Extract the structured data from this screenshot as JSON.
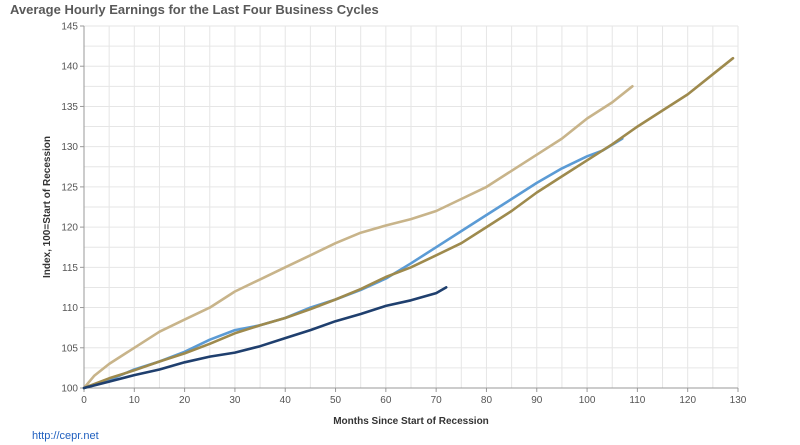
{
  "source": "http://cepr.net",
  "chart_data": {
    "type": "line",
    "title": "Average Hourly Earnings for the Last Four Business Cycles",
    "xlabel": "Months Since Start of Recession",
    "ylabel": "Index, 100=Start of Recession",
    "xlim": [
      0,
      130
    ],
    "ylim": [
      100,
      145
    ],
    "xticks": [
      0,
      10,
      20,
      30,
      40,
      50,
      60,
      70,
      80,
      90,
      100,
      110,
      120,
      130
    ],
    "yticks": [
      100,
      105,
      110,
      115,
      120,
      125,
      130,
      135,
      140,
      145
    ],
    "grid": true,
    "series": [
      {
        "color": "#c8b48a",
        "points": [
          [
            0,
            100
          ],
          [
            2,
            101.5
          ],
          [
            5,
            103
          ],
          [
            10,
            105
          ],
          [
            15,
            107
          ],
          [
            20,
            108.5
          ],
          [
            25,
            110
          ],
          [
            30,
            112
          ],
          [
            35,
            113.5
          ],
          [
            40,
            115
          ],
          [
            45,
            116.5
          ],
          [
            50,
            118
          ],
          [
            55,
            119.3
          ],
          [
            60,
            120.2
          ],
          [
            65,
            121
          ],
          [
            70,
            122
          ],
          [
            75,
            123.5
          ],
          [
            80,
            125
          ],
          [
            85,
            127
          ],
          [
            90,
            129
          ],
          [
            95,
            131
          ],
          [
            100,
            133.5
          ],
          [
            105,
            135.5
          ],
          [
            109,
            137.5
          ]
        ]
      },
      {
        "color": "#5b9bd5",
        "points": [
          [
            0,
            100
          ],
          [
            5,
            101
          ],
          [
            10,
            102.3
          ],
          [
            15,
            103.3
          ],
          [
            20,
            104.5
          ],
          [
            25,
            106
          ],
          [
            30,
            107.2
          ],
          [
            35,
            107.8
          ],
          [
            40,
            108.7
          ],
          [
            45,
            110
          ],
          [
            50,
            111
          ],
          [
            55,
            112.2
          ],
          [
            60,
            113.6
          ],
          [
            65,
            115.5
          ],
          [
            70,
            117.5
          ],
          [
            75,
            119.5
          ],
          [
            80,
            121.5
          ],
          [
            85,
            123.5
          ],
          [
            90,
            125.5
          ],
          [
            95,
            127.3
          ],
          [
            100,
            128.8
          ],
          [
            103,
            129.5
          ],
          [
            107,
            131
          ]
        ]
      },
      {
        "color": "#9e8a4d",
        "points": [
          [
            0,
            100
          ],
          [
            5,
            101.2
          ],
          [
            10,
            102.2
          ],
          [
            15,
            103.3
          ],
          [
            20,
            104.3
          ],
          [
            25,
            105.5
          ],
          [
            30,
            106.8
          ],
          [
            35,
            107.8
          ],
          [
            40,
            108.7
          ],
          [
            45,
            109.8
          ],
          [
            50,
            111
          ],
          [
            55,
            112.3
          ],
          [
            60,
            113.8
          ],
          [
            65,
            115
          ],
          [
            70,
            116.5
          ],
          [
            75,
            118
          ],
          [
            80,
            120
          ],
          [
            85,
            122
          ],
          [
            90,
            124.3
          ],
          [
            95,
            126.3
          ],
          [
            100,
            128.3
          ],
          [
            105,
            130.3
          ],
          [
            110,
            132.5
          ],
          [
            115,
            134.5
          ],
          [
            120,
            136.5
          ],
          [
            125,
            139
          ],
          [
            129,
            141
          ]
        ]
      },
      {
        "color": "#1f3f6e",
        "points": [
          [
            0,
            100
          ],
          [
            5,
            100.8
          ],
          [
            10,
            101.6
          ],
          [
            15,
            102.3
          ],
          [
            20,
            103.2
          ],
          [
            25,
            103.9
          ],
          [
            30,
            104.4
          ],
          [
            35,
            105.2
          ],
          [
            40,
            106.2
          ],
          [
            45,
            107.2
          ],
          [
            50,
            108.3
          ],
          [
            55,
            109.2
          ],
          [
            60,
            110.2
          ],
          [
            65,
            110.9
          ],
          [
            70,
            111.8
          ],
          [
            72,
            112.5
          ]
        ]
      }
    ]
  }
}
